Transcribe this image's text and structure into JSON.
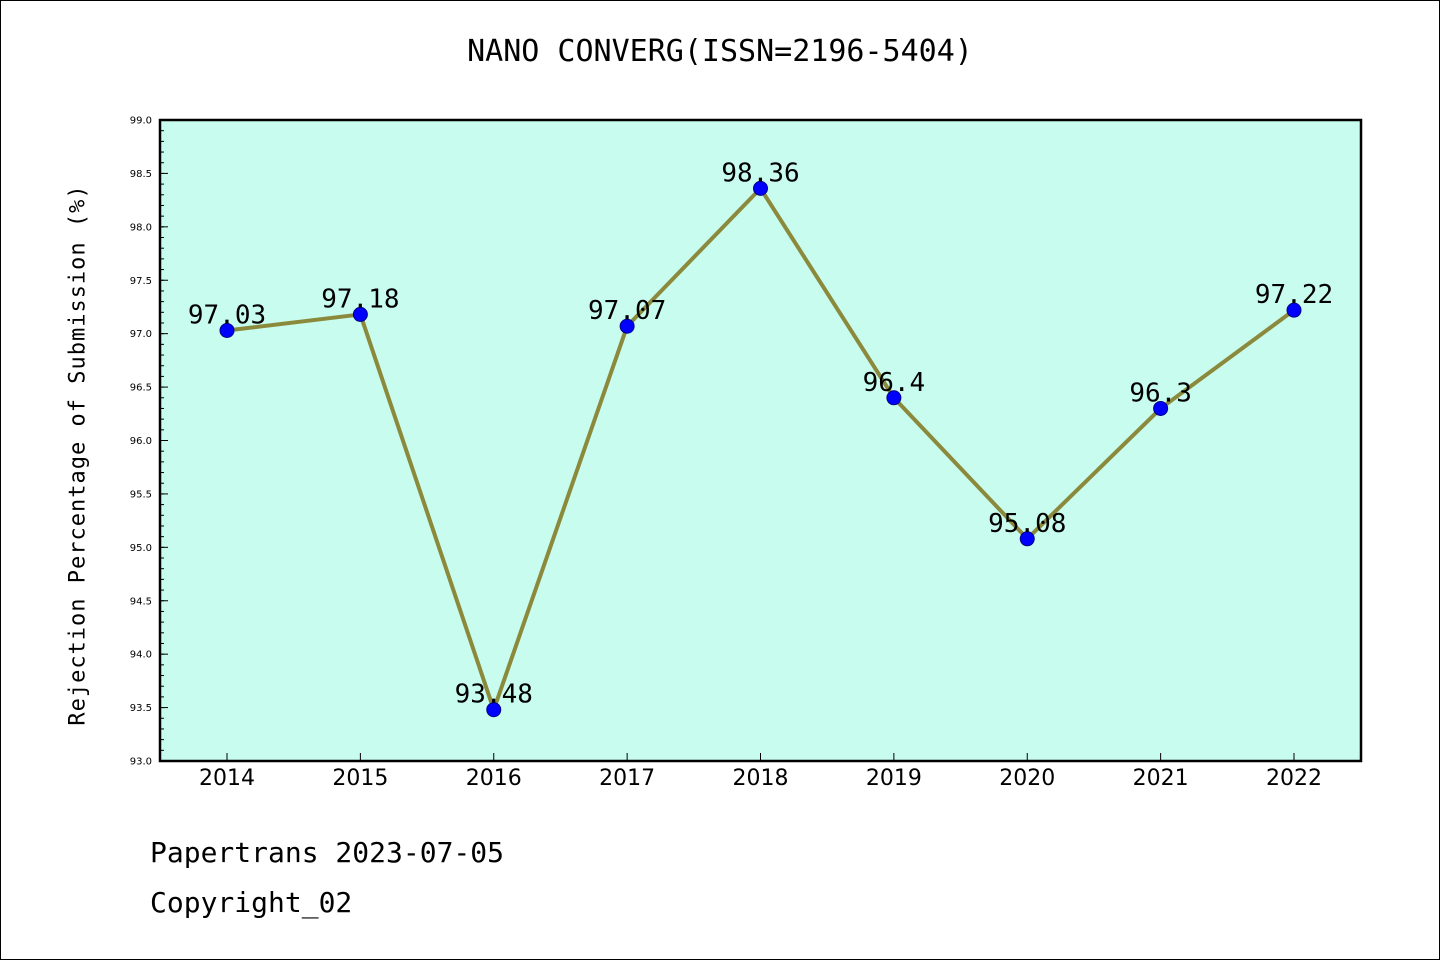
{
  "chart_data": {
    "type": "line",
    "title": "NANO CONVERG(ISSN=2196-5404)",
    "xlabel": "",
    "ylabel": "Rejection Percentage of Submission (%)",
    "categories": [
      "2014",
      "2015",
      "2016",
      "2017",
      "2018",
      "2019",
      "2020",
      "2021",
      "2022"
    ],
    "series": [
      {
        "values": [
          97.03,
          97.18,
          93.48,
          97.07,
          98.36,
          96.4,
          95.08,
          96.3,
          97.22
        ]
      }
    ],
    "data_labels": [
      "97.03",
      "97.18",
      "93.48",
      "97.07",
      "98.36",
      "96.4",
      "95.08",
      "96.3",
      "97.22"
    ],
    "ylim": [
      93.0,
      99.0
    ],
    "yticks": [
      "93.0",
      "93.5",
      "94.0",
      "94.5",
      "95.0",
      "95.5",
      "96.0",
      "96.5",
      "97.0",
      "97.5",
      "98.0",
      "98.5",
      "99.0"
    ],
    "grid": false,
    "colors": {
      "plot_background": "#c8fcee",
      "line": "#8b8a3c",
      "marker": "#0000ff",
      "marker_edge": "#00008b"
    }
  },
  "footer": {
    "line1": "Papertrans 2023-07-05",
    "line2": "Copyright_02"
  }
}
